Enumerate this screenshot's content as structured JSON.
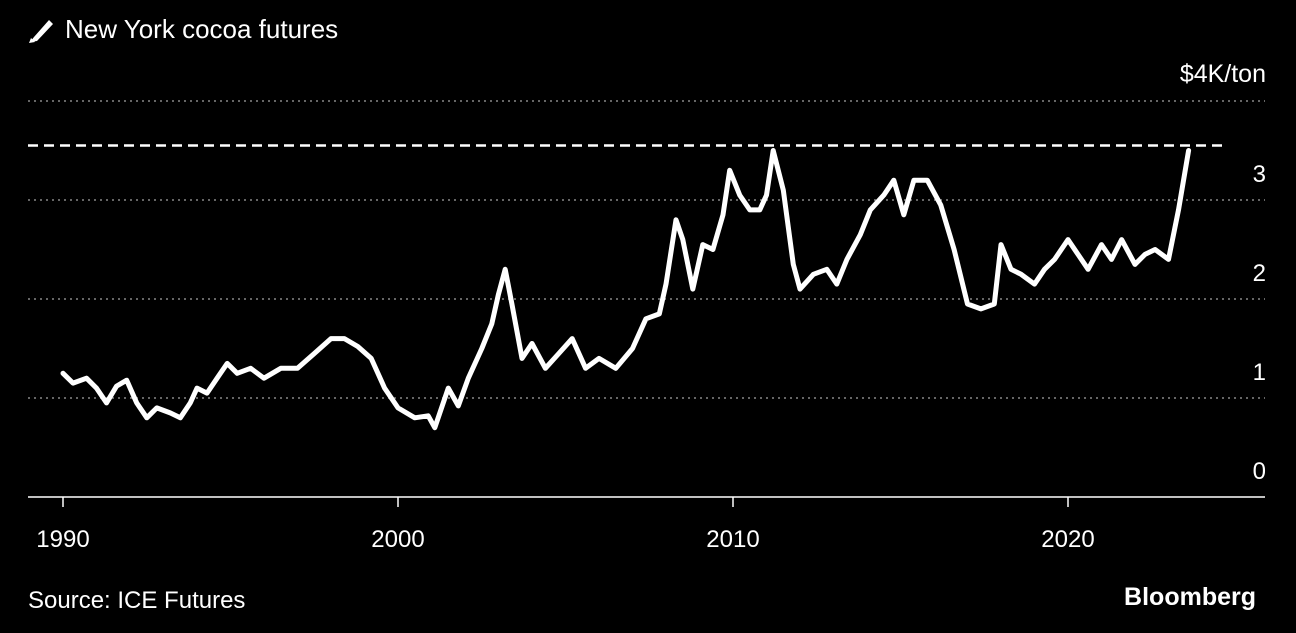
{
  "header": {
    "title": "New York cocoa futures",
    "icon": "pencil-icon"
  },
  "footer": {
    "source": "Source: ICE Futures",
    "brand": "Bloomberg"
  },
  "colors": {
    "background": "#000000",
    "line": "#ffffff",
    "grid": "#888888",
    "axis": "#ffffff"
  },
  "chart_data": {
    "type": "line",
    "title": "New York cocoa futures",
    "ylabel": "$4K/ton",
    "y_unit_label": "$4K/ton",
    "ylim": [
      0,
      4
    ],
    "xlim": [
      1990,
      2025
    ],
    "y_ticks": [
      {
        "value": 3,
        "label": "3"
      },
      {
        "value": 2,
        "label": "2"
      },
      {
        "value": 1,
        "label": "1"
      },
      {
        "value": 0,
        "label": "0"
      }
    ],
    "x_ticks": [
      {
        "value": 1990,
        "label": "1990"
      },
      {
        "value": 2000,
        "label": "2000"
      },
      {
        "value": 2010,
        "label": "2010"
      },
      {
        "value": 2020,
        "label": "2020"
      }
    ],
    "grid": true,
    "reference_line": {
      "value": 3.55,
      "style": "dashed"
    },
    "series": [
      {
        "x": [
          1990.0,
          1990.3,
          1990.7,
          1991.0,
          1991.3,
          1991.6,
          1991.9,
          1992.2,
          1992.5,
          1992.8,
          1993.2,
          1993.5,
          1993.8,
          1994.0,
          1994.3,
          1994.6,
          1994.9,
          1995.2,
          1995.6,
          1996.0,
          1996.5,
          1997.0,
          1997.5,
          1998.0,
          1998.4,
          1998.8,
          1999.2,
          1999.6,
          2000.0,
          2000.5,
          2000.9,
          2001.1,
          2001.5,
          2001.8,
          2002.1,
          2002.5,
          2002.8,
          2003.0,
          2003.2,
          2003.4,
          2003.7,
          2004.0,
          2004.4,
          2004.8,
          2005.2,
          2005.6,
          2006.0,
          2006.5,
          2007.0,
          2007.4,
          2007.8,
          2008.0,
          2008.3,
          2008.5,
          2008.8,
          2009.1,
          2009.4,
          2009.7,
          2009.9,
          2010.2,
          2010.5,
          2010.8,
          2011.0,
          2011.2,
          2011.5,
          2011.8,
          2012.0,
          2012.4,
          2012.8,
          2013.1,
          2013.4,
          2013.8,
          2014.1,
          2014.5,
          2014.8,
          2015.1,
          2015.4,
          2015.8,
          2016.2,
          2016.6,
          2017.0,
          2017.4,
          2017.8,
          2018.0,
          2018.3,
          2018.6,
          2019.0,
          2019.3,
          2019.6,
          2020.0,
          2020.3,
          2020.6,
          2021.0,
          2021.3,
          2021.6,
          2022.0,
          2022.3,
          2022.6,
          2023.0,
          2023.3,
          2023.6
        ],
        "y": [
          1.25,
          1.15,
          1.2,
          1.1,
          0.95,
          1.12,
          1.18,
          0.95,
          0.8,
          0.9,
          0.85,
          0.8,
          0.95,
          1.1,
          1.05,
          1.2,
          1.35,
          1.25,
          1.3,
          1.2,
          1.3,
          1.3,
          1.45,
          1.6,
          1.6,
          1.52,
          1.4,
          1.1,
          0.9,
          0.8,
          0.82,
          0.7,
          1.1,
          0.92,
          1.2,
          1.5,
          1.75,
          2.05,
          2.3,
          1.95,
          1.4,
          1.55,
          1.3,
          1.45,
          1.6,
          1.3,
          1.4,
          1.3,
          1.5,
          1.8,
          1.85,
          2.15,
          2.8,
          2.6,
          2.1,
          2.55,
          2.5,
          2.85,
          3.3,
          3.05,
          2.9,
          2.9,
          3.05,
          3.5,
          3.1,
          2.35,
          2.1,
          2.25,
          2.3,
          2.15,
          2.4,
          2.65,
          2.9,
          3.05,
          3.2,
          2.85,
          3.2,
          3.2,
          2.95,
          2.5,
          1.95,
          1.9,
          1.95,
          2.55,
          2.3,
          2.25,
          2.15,
          2.3,
          2.4,
          2.6,
          2.45,
          2.3,
          2.55,
          2.4,
          2.6,
          2.35,
          2.45,
          2.5,
          2.4,
          2.9,
          3.5
        ]
      }
    ]
  }
}
